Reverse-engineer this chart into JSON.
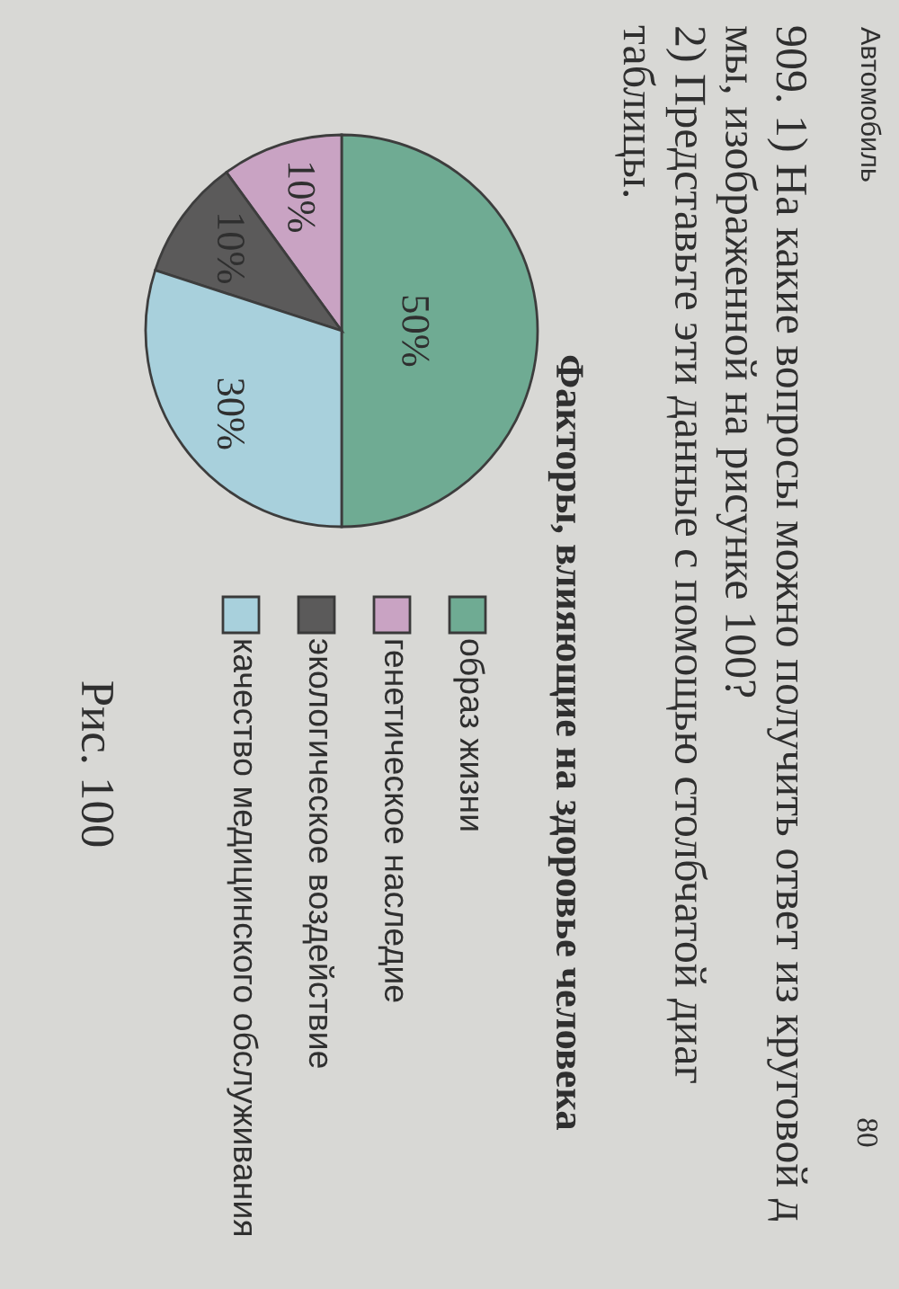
{
  "chart_data": {
    "type": "pie",
    "title": "Факторы, влияющие на здоровье человека",
    "categories": [
      "образ жизни",
      "генетическое наследие",
      "экологическое воздействие",
      "качество медицинского обслуживания"
    ],
    "values": [
      50,
      10,
      10,
      30
    ],
    "colors": [
      "#6fab93",
      "#c9a3c3",
      "#5b5a5a",
      "#a8d0dc"
    ],
    "value_labels": [
      "50%",
      "10%",
      "10%",
      "30%"
    ],
    "legend": "bottom",
    "annotations": [
      "Автомобиль",
      "80",
      "909. 1) На какие вопросы можно получить ответ из круговой д",
      "мы, изображенной на рисунке 100?",
      "2) Представьте эти данные с помощью столбчатой диаг",
      "таблицы.",
      "Рис. 100"
    ]
  }
}
